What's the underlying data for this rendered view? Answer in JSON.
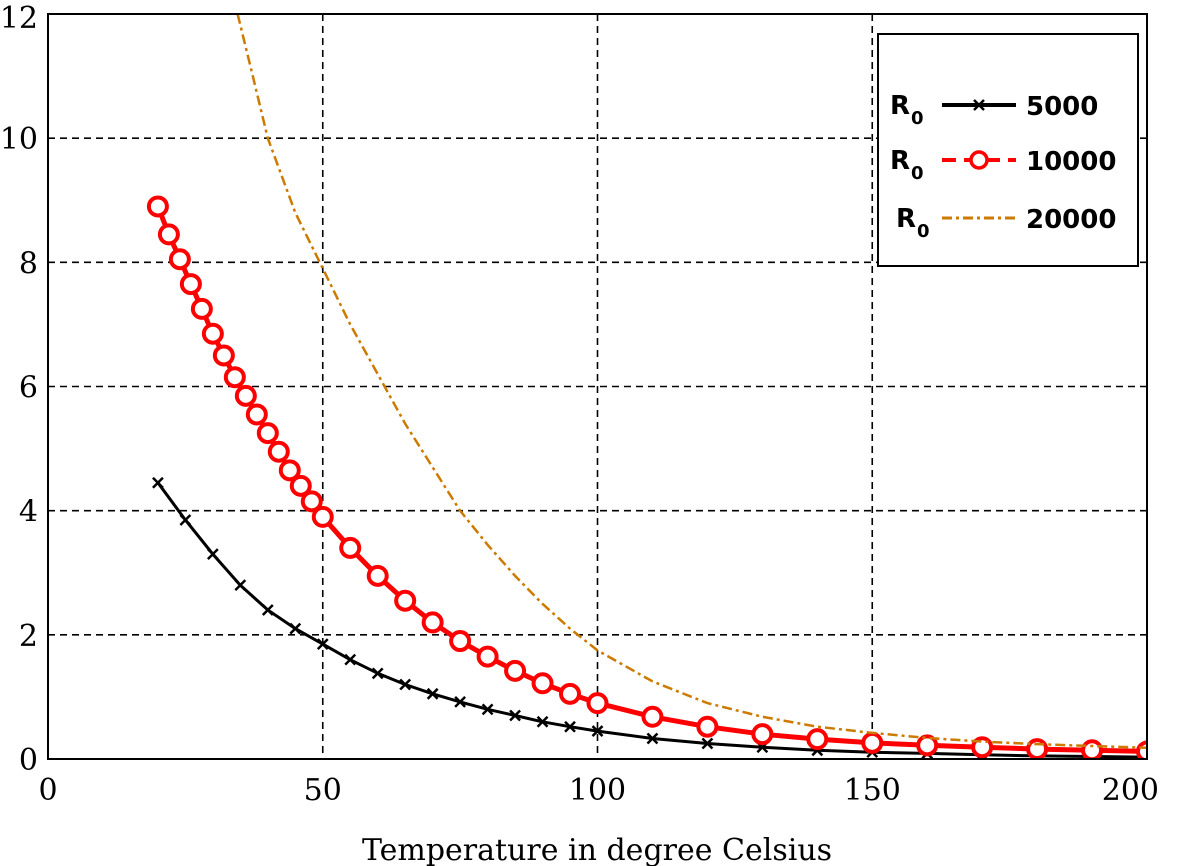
{
  "chart_data": {
    "type": "line",
    "title": "",
    "xlabel": "Temperature in degree Celsius",
    "ylabel": "",
    "xlim": [
      0,
      200
    ],
    "ylim": [
      0,
      12
    ],
    "x_ticks": [
      "0",
      "50",
      "100",
      "150",
      "200"
    ],
    "y_ticks": [
      "0",
      "2",
      "4",
      "6",
      "8",
      "10",
      "12"
    ],
    "grid": true,
    "grid_style": "dashed",
    "legend_position": "top-right",
    "series": [
      {
        "name": "5000",
        "legend_prefix": "R",
        "legend_subscript": "0",
        "color": "#000000",
        "marker": "x",
        "x": [
          20,
          25,
          30,
          35,
          40,
          45,
          50,
          55,
          60,
          65,
          70,
          75,
          80,
          85,
          90,
          95,
          100,
          110,
          120,
          130,
          140,
          150,
          160,
          170,
          180,
          190,
          200
        ],
        "y": [
          4.45,
          3.85,
          3.3,
          2.8,
          2.4,
          2.1,
          1.85,
          1.6,
          1.38,
          1.2,
          1.05,
          0.92,
          0.8,
          0.7,
          0.6,
          0.52,
          0.45,
          0.33,
          0.25,
          0.19,
          0.14,
          0.11,
          0.09,
          0.07,
          0.05,
          0.04,
          0.03
        ]
      },
      {
        "name": "10000",
        "legend_prefix": "R",
        "legend_subscript": "0",
        "color": "#ff0000",
        "marker": "o",
        "x": [
          20,
          22,
          24,
          26,
          28,
          30,
          32,
          34,
          36,
          38,
          40,
          42,
          44,
          46,
          48,
          50,
          55,
          60,
          65,
          70,
          75,
          80,
          85,
          90,
          95,
          100,
          110,
          120,
          130,
          140,
          150,
          160,
          170,
          180,
          190,
          200
        ],
        "y": [
          8.9,
          8.45,
          8.05,
          7.65,
          7.25,
          6.85,
          6.5,
          6.15,
          5.85,
          5.55,
          5.25,
          4.95,
          4.65,
          4.4,
          4.15,
          3.9,
          3.4,
          2.95,
          2.55,
          2.2,
          1.9,
          1.65,
          1.42,
          1.22,
          1.05,
          0.9,
          0.68,
          0.52,
          0.4,
          0.32,
          0.26,
          0.22,
          0.19,
          0.16,
          0.14,
          0.12
        ]
      },
      {
        "name": "20000",
        "legend_prefix": "R",
        "legend_subscript": "0",
        "color": "#cc7a00",
        "marker": "dash-dot",
        "x": [
          34.5,
          37,
          40,
          45,
          50,
          55,
          60,
          65,
          70,
          75,
          80,
          85,
          90,
          95,
          100,
          110,
          120,
          130,
          140,
          150,
          160,
          170,
          180,
          190,
          200
        ],
        "y": [
          12,
          11.1,
          10.0,
          8.8,
          7.9,
          7.0,
          6.2,
          5.4,
          4.7,
          4.0,
          3.45,
          2.95,
          2.5,
          2.1,
          1.75,
          1.25,
          0.9,
          0.68,
          0.52,
          0.42,
          0.34,
          0.28,
          0.24,
          0.21,
          0.18
        ]
      }
    ]
  }
}
